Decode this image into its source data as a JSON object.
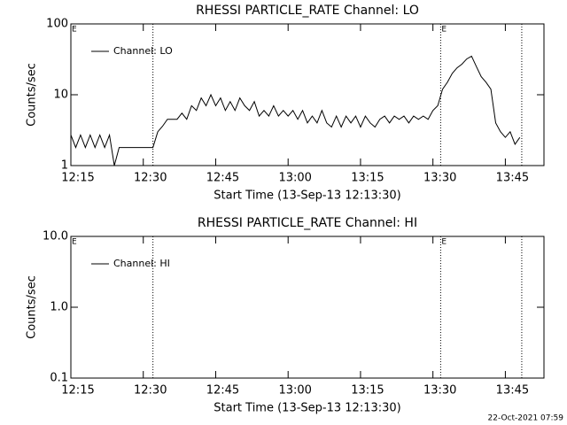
{
  "chart_data": [
    {
      "type": "line",
      "title": "RHESSI PARTICLE_RATE Channel: LO",
      "x_label": "Start Time (13-Sep-13 12:13:30)",
      "y_label": "Counts/sec",
      "yscale": "log",
      "ylim": [
        1,
        100
      ],
      "yticks": [
        1,
        10,
        100
      ],
      "xlim": [
        735,
        833
      ],
      "xticks": [
        {
          "value": 735,
          "label": "12:15"
        },
        {
          "value": 750,
          "label": "12:30"
        },
        {
          "value": 765,
          "label": "12:45"
        },
        {
          "value": 780,
          "label": "13:00"
        },
        {
          "value": 795,
          "label": "13:15"
        },
        {
          "value": 810,
          "label": "13:30"
        },
        {
          "value": 825,
          "label": "13:45"
        }
      ],
      "vlines": [
        752,
        811.6,
        828.4
      ],
      "flags": [
        {
          "x": 735,
          "label": "E"
        },
        {
          "x": 811.6,
          "label": "E"
        }
      ],
      "legend": "upper left",
      "series": [
        {
          "name": "Channel: LO",
          "color": "#000000",
          "x": [
            735,
            736,
            737,
            738,
            739,
            740,
            741,
            742,
            743,
            744,
            745,
            746,
            747,
            748,
            749,
            750,
            751,
            752,
            753,
            754,
            755,
            756,
            757,
            758,
            759,
            760,
            761,
            762,
            763,
            764,
            765,
            766,
            767,
            768,
            769,
            770,
            771,
            772,
            773,
            774,
            775,
            776,
            777,
            778,
            779,
            780,
            781,
            782,
            783,
            784,
            785,
            786,
            787,
            788,
            789,
            790,
            791,
            792,
            793,
            794,
            795,
            796,
            797,
            798,
            799,
            800,
            801,
            802,
            803,
            804,
            805,
            806,
            807,
            808,
            809,
            810,
            811,
            812,
            813,
            814,
            815,
            816,
            817,
            818,
            819,
            820,
            821,
            822,
            823,
            824,
            825,
            826,
            827,
            828
          ],
          "values": [
            2.7,
            1.8,
            2.7,
            1.8,
            2.7,
            1.8,
            2.7,
            1.8,
            2.7,
            1,
            1.8,
            1.8,
            1.8,
            1.8,
            1.8,
            1.8,
            1.8,
            1.8,
            3,
            3.6,
            4.5,
            4.5,
            4.5,
            5.5,
            4.5,
            7,
            6,
            9,
            7,
            10,
            7,
            9,
            6,
            8,
            6,
            9,
            7,
            6,
            8,
            5,
            6,
            5,
            7,
            5,
            6,
            5,
            6,
            4.5,
            6,
            4,
            5,
            4,
            6,
            4,
            3.5,
            5,
            3.5,
            5,
            4,
            5,
            3.5,
            5,
            4,
            3.5,
            4.5,
            5,
            4,
            5,
            4.5,
            5,
            4,
            5,
            4.5,
            5,
            4.5,
            6,
            7,
            12,
            15,
            20,
            24,
            27,
            32,
            35,
            25,
            18,
            15,
            12,
            4,
            3,
            2.5,
            3,
            2,
            2.5
          ]
        }
      ]
    },
    {
      "type": "line",
      "title": "RHESSI PARTICLE_RATE Channel: HI",
      "x_label": "Start Time (13-Sep-13 12:13:30)",
      "y_label": "Counts/sec",
      "yscale": "log",
      "ylim": [
        0.1,
        10
      ],
      "yticks": [
        0.1,
        {
          "value": 1,
          "label": "1.0"
        },
        {
          "value": 10,
          "label": "10.0"
        }
      ],
      "xlim": [
        735,
        833
      ],
      "xticks": [
        {
          "value": 735,
          "label": "12:15"
        },
        {
          "value": 750,
          "label": "12:30"
        },
        {
          "value": 765,
          "label": "12:45"
        },
        {
          "value": 780,
          "label": "13:00"
        },
        {
          "value": 795,
          "label": "13:15"
        },
        {
          "value": 810,
          "label": "13:30"
        },
        {
          "value": 825,
          "label": "13:45"
        }
      ],
      "vlines": [
        752,
        811.6,
        828.4
      ],
      "flags": [
        {
          "x": 735,
          "label": "E"
        },
        {
          "x": 811.6,
          "label": "E"
        }
      ],
      "legend": "upper left",
      "series": [
        {
          "name": "Channel: HI",
          "color": "#000000",
          "x": [],
          "values": []
        }
      ]
    }
  ],
  "footer": "22-Oct-2021 07:59"
}
